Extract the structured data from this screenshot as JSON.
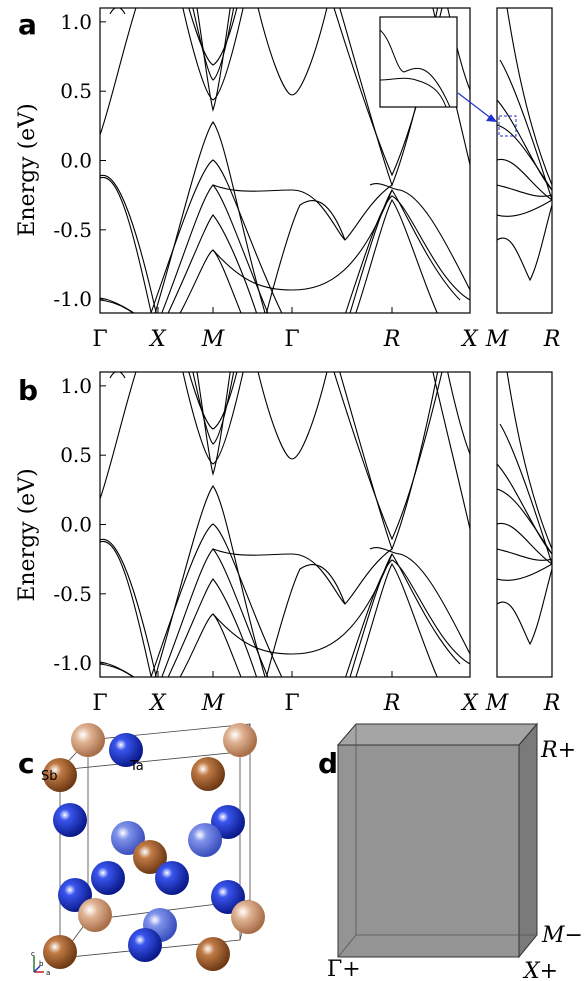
{
  "panels": {
    "a": "a",
    "b": "b",
    "c": "c",
    "d": "d"
  },
  "axis": {
    "ylabel": "Energy (eV)",
    "yticks": [
      "1.0",
      "0.5",
      "0.0",
      "-0.5",
      "-1.0"
    ],
    "xticks_main": [
      "Γ",
      "X",
      "M",
      "Γ",
      "R",
      "X"
    ],
    "xticks_side": [
      "M",
      "R"
    ]
  },
  "crystal": {
    "atom_sb": "Sb",
    "atom_ta": "Ta",
    "colors": {
      "sb": "#b06a3a",
      "ta": "#1f35c8",
      "ta_light": "#5f74dd",
      "sb_light": "#d9a88a"
    },
    "axes_letters": [
      "c",
      "b",
      "a"
    ]
  },
  "bz": {
    "r_label": "R+",
    "m_label": "M−",
    "g_label": "Γ+",
    "x_label": "X+",
    "face_color": "#8e8e8e"
  },
  "chart_data": [
    {
      "type": "line",
      "panel": "a",
      "title": "",
      "xlabel": "",
      "ylabel": "Energy (eV)",
      "ylim": [
        -1.1,
        1.1
      ],
      "x_ticks": [
        "Γ",
        "X",
        "M",
        "Γ",
        "R",
        "X"
      ],
      "inset_x_ticks": [
        "M",
        "R"
      ],
      "series": [
        {
          "x": [
            0,
            0.5,
            1,
            1.5,
            2,
            2.5,
            3,
            3.5,
            4,
            4.5,
            5
          ],
          "y": [
            -0.27,
            -0.9,
            -0.55,
            0.22,
            -0.35,
            -0.3,
            -0.3,
            -0.55,
            -0.2,
            -0.35,
            -1.0
          ]
        },
        {
          "x": [
            0,
            0.5,
            1,
            1.5,
            2,
            2.5,
            3,
            3.5,
            4,
            4.5,
            5
          ],
          "y": [
            0.15,
            0.9,
            0.75,
            0.3,
            0.6,
            0.85,
            0.15,
            0.6,
            -0.1,
            0.3,
            1.0
          ]
        },
        {
          "x": [
            0,
            0.5,
            1,
            1.5,
            2,
            2.5,
            3,
            3.5,
            4,
            4.5,
            5
          ],
          "y": [
            -1.05,
            -1.1,
            -0.95,
            -0.65,
            -0.9,
            -1.0,
            -1.1,
            -0.85,
            -0.35,
            -0.75,
            -0.9
          ]
        }
      ]
    },
    {
      "type": "line",
      "panel": "b",
      "title": "",
      "xlabel": "",
      "ylabel": "Energy (eV)",
      "ylim": [
        -1.1,
        1.1
      ],
      "x_ticks": [
        "Γ",
        "X",
        "M",
        "Γ",
        "R",
        "X"
      ],
      "inset_x_ticks": [
        "M",
        "R"
      ],
      "series": [
        {
          "x": [
            0,
            0.5,
            1,
            1.5,
            2,
            2.5,
            3,
            3.5,
            4,
            4.5,
            5
          ],
          "y": [
            -0.27,
            -0.9,
            -0.55,
            0.05,
            -0.35,
            -0.3,
            -0.3,
            -0.55,
            -0.22,
            -0.35,
            -1.0
          ]
        },
        {
          "x": [
            0,
            0.5,
            1,
            1.5,
            2,
            2.5,
            3,
            3.5,
            4,
            4.5,
            5
          ],
          "y": [
            0.15,
            0.9,
            0.75,
            0.4,
            0.6,
            0.85,
            0.15,
            0.6,
            -0.1,
            0.3,
            1.0
          ]
        },
        {
          "x": [
            0,
            0.5,
            1,
            1.5,
            2,
            2.5,
            3,
            3.5,
            4,
            4.5,
            5
          ],
          "y": [
            -1.05,
            -1.1,
            -0.95,
            -0.7,
            -0.9,
            -1.0,
            -1.1,
            -0.85,
            -0.3,
            -0.75,
            -0.9
          ]
        }
      ]
    }
  ]
}
